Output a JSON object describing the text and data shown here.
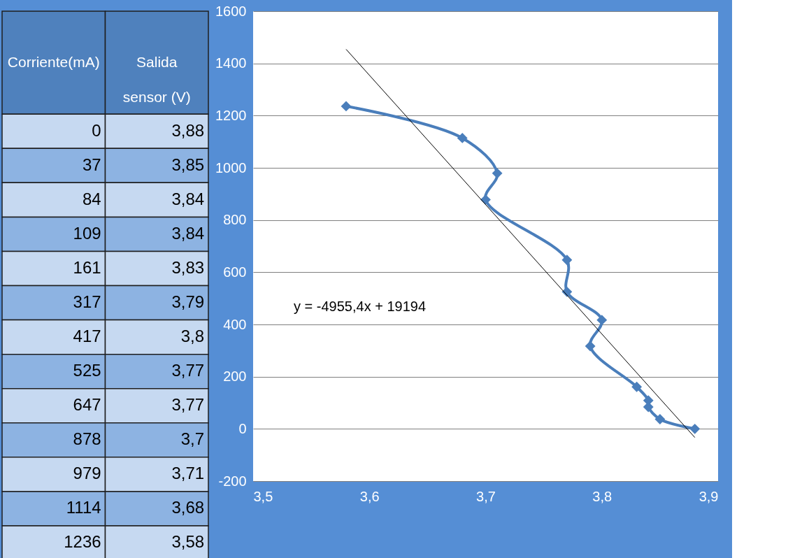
{
  "chart_data": [
    {
      "type": "other",
      "categories": [
        "Corriente(mA)",
        "Salida sensor (V)"
      ],
      "cell_labels": [
        [
          "0",
          "3,88"
        ],
        [
          "37",
          "3,85"
        ],
        [
          "84",
          "3,84"
        ],
        [
          "109",
          "3,84"
        ],
        [
          "161",
          "3,83"
        ],
        [
          "317",
          "3,79"
        ],
        [
          "417",
          "3,8"
        ],
        [
          "525",
          "3,77"
        ],
        [
          "647",
          "3,77"
        ],
        [
          "878",
          "3,7"
        ],
        [
          "979",
          "3,71"
        ],
        [
          "1114",
          "3,68"
        ],
        [
          "1236",
          "3,58"
        ]
      ]
    },
    {
      "type": "line",
      "annotations": [
        "y = -4955,4x + 19194"
      ],
      "xlim": [
        3.5,
        3.9
      ],
      "xticks": [
        {
          "value": 3.5,
          "label": "3,5"
        },
        {
          "value": 3.6,
          "label": "3,6"
        },
        {
          "value": 3.7,
          "label": "3,7"
        },
        {
          "value": 3.8,
          "label": "3,8"
        },
        {
          "value": 3.9,
          "label": "3,9"
        }
      ],
      "ylim": [
        -200,
        1600
      ],
      "yticks": [
        -200,
        0,
        200,
        400,
        600,
        800,
        1000,
        1200,
        1400,
        1600
      ],
      "grid": "y",
      "marker": "diamond",
      "series": [
        {
          "color": "#4a7ebb",
          "x": [
            3.88,
            3.85,
            3.84,
            3.84,
            3.83,
            3.79,
            3.8,
            3.77,
            3.77,
            3.7,
            3.71,
            3.68,
            3.58
          ],
          "values": [
            0,
            37,
            84,
            109,
            161,
            317,
            417,
            525,
            647,
            878,
            979,
            1114,
            1236
          ]
        },
        {
          "type": "line",
          "marker": "none",
          "color": "#000000",
          "x": [
            3.58,
            3.88
          ],
          "values": [
            1454,
            -33
          ]
        }
      ]
    }
  ]
}
